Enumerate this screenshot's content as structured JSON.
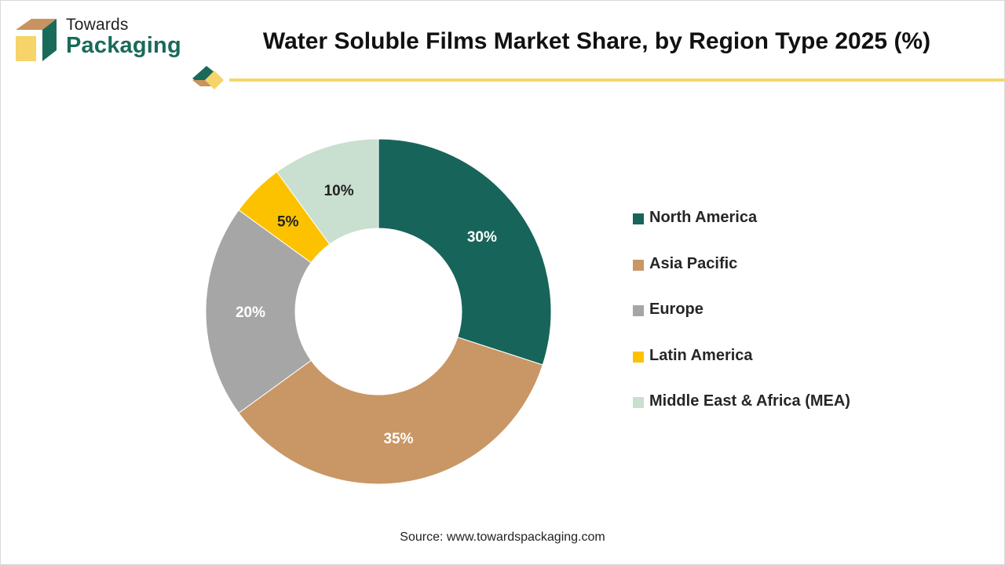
{
  "brand": {
    "name_top": "Towards",
    "name_bottom": "Packaging",
    "logo_icon": "box-icon"
  },
  "colors": {
    "accent_line": "#f5d76a",
    "brand_green": "#1a6a5a",
    "brand_tan": "#c8935f"
  },
  "chart_data": {
    "type": "pie",
    "donut": true,
    "title": "Water Soluble Films Market Share, by Region Type 2025 (%)",
    "categories": [
      "North America",
      "Asia Pacific",
      "Europe",
      "Latin America",
      "Middle East & Africa (MEA)"
    ],
    "values": [
      30,
      35,
      20,
      5,
      10
    ],
    "data_labels": [
      "30%",
      "35%",
      "20%",
      "5%",
      "10%"
    ],
    "colors": [
      "#17645a",
      "#c99665",
      "#a6a6a6",
      "#fcc200",
      "#c9dfcf"
    ],
    "label_colors": [
      "#ffffff",
      "#ffffff",
      "#ffffff",
      "#222222",
      "#222222"
    ],
    "legend_position": "right"
  },
  "source": "Source: www.towardspackaging.com"
}
